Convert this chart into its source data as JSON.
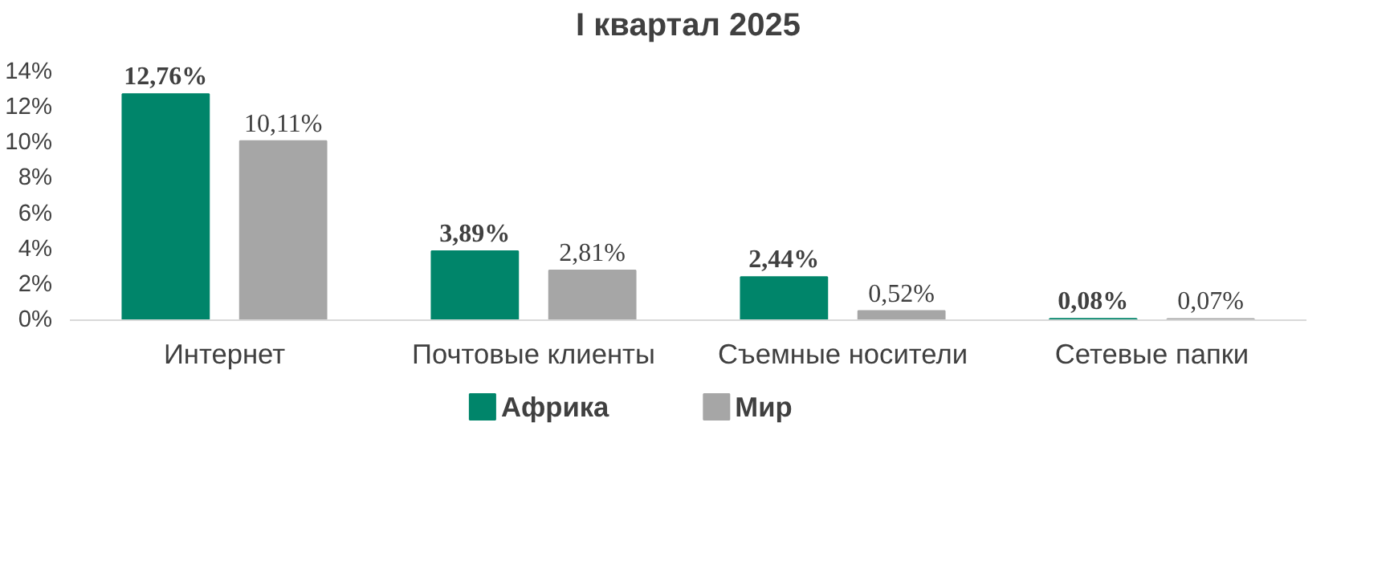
{
  "chart_data": {
    "type": "bar",
    "title": "I квартал 2025",
    "categories": [
      "Интернет",
      "Почтовые клиенты",
      "Съемные носители",
      "Сетевые папки"
    ],
    "series": [
      {
        "name": "Африка",
        "color": "#00856a",
        "values": [
          12.76,
          3.89,
          2.44,
          0.08
        ],
        "value_labels": [
          "12,76%",
          "3,89%",
          "2,44%",
          "0,08%"
        ]
      },
      {
        "name": "Мир",
        "color": "#a6a6a6",
        "values": [
          10.11,
          2.81,
          0.52,
          0.07
        ],
        "value_labels": [
          "10,11%",
          "2,81%",
          "0,52%",
          "0,07%"
        ]
      }
    ],
    "ylim": [
      0,
      14
    ],
    "yticks": [
      {
        "value": 0,
        "label": "0%"
      },
      {
        "value": 2,
        "label": "2%"
      },
      {
        "value": 4,
        "label": "4%"
      },
      {
        "value": 6,
        "label": "6%"
      },
      {
        "value": 8,
        "label": "8%"
      },
      {
        "value": 10,
        "label": "10%"
      },
      {
        "value": 12,
        "label": "12%"
      },
      {
        "value": 14,
        "label": "14%"
      }
    ],
    "grid": false,
    "legend": "bottom"
  }
}
